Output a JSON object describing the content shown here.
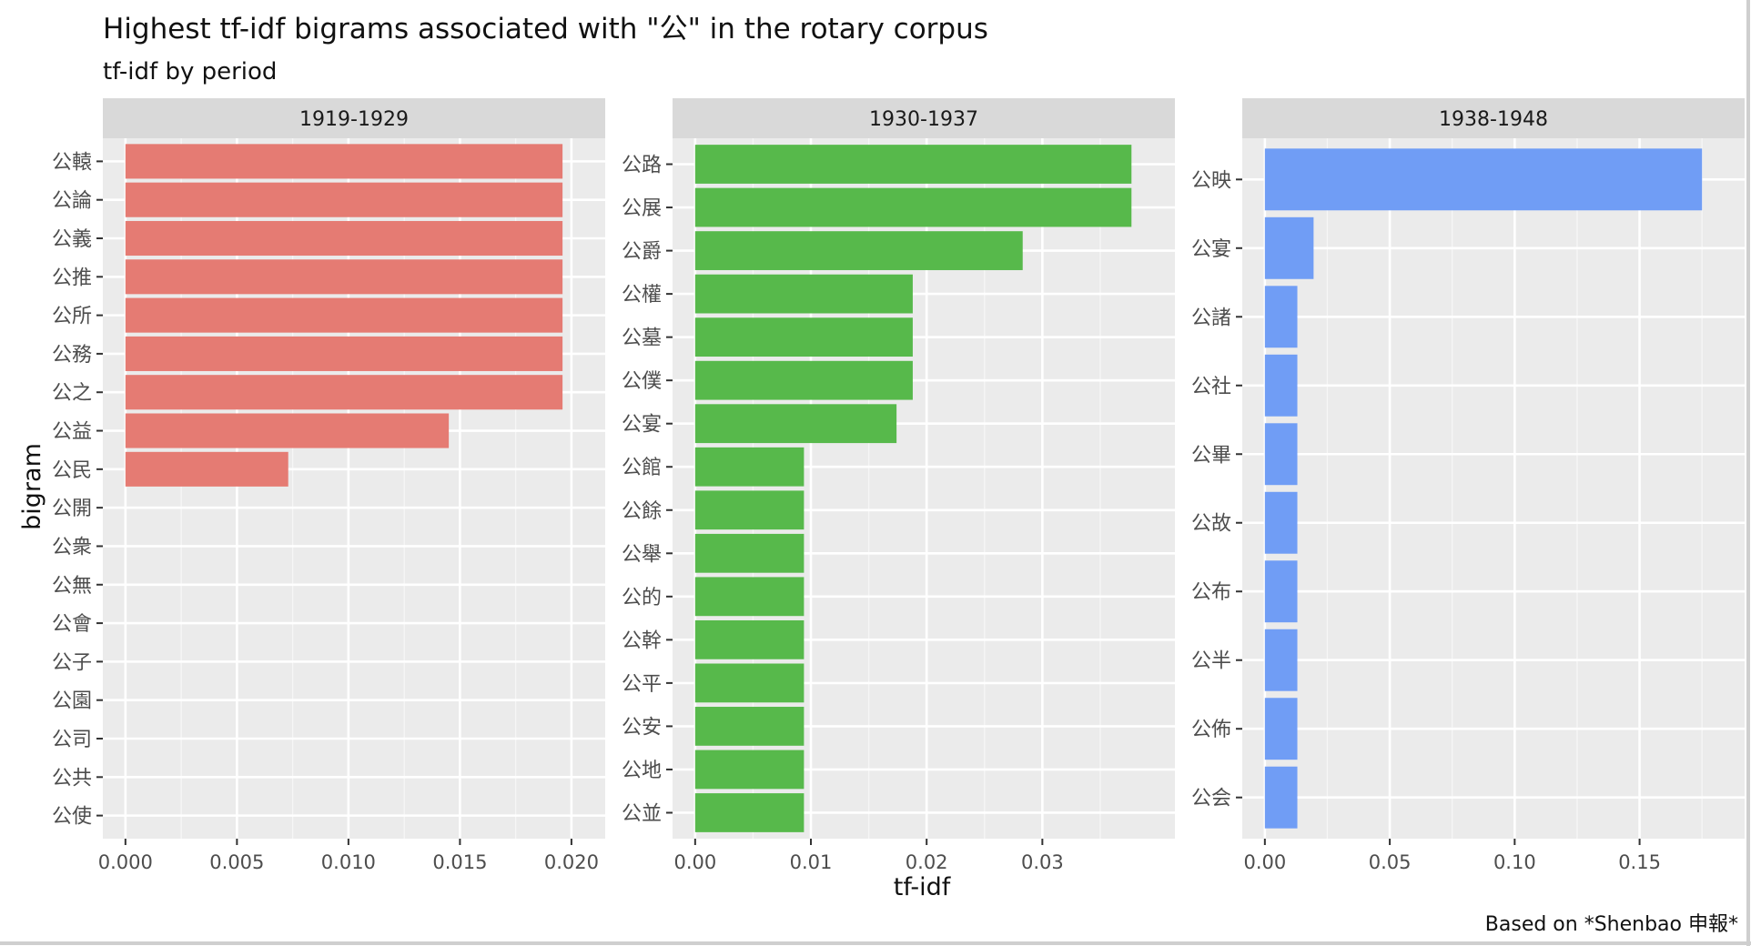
{
  "chart_data": {
    "type": "bar",
    "orientation": "horizontal",
    "title": "Highest tf-idf bigrams associated with \"公\" in the rotary corpus",
    "subtitle": "tf-idf by period",
    "xlabel": "tf-idf",
    "ylabel": "bigram",
    "caption": "Based on *Shenbao 申報*",
    "grid": true,
    "legend": "none",
    "facets": [
      {
        "label": "1919-1929",
        "color": "#e57b73",
        "xlim": [
          0,
          0.0205
        ],
        "xticks": [
          0.0,
          0.005,
          0.01,
          0.015,
          0.02
        ],
        "xtick_labels": [
          "0.000",
          "0.005",
          "0.010",
          "0.015",
          "0.020"
        ],
        "categories": [
          "公轅",
          "公論",
          "公義",
          "公推",
          "公所",
          "公務",
          "公之",
          "公益",
          "公民",
          "公開",
          "公衆",
          "公無",
          "公會",
          "公子",
          "公園",
          "公司",
          "公共",
          "公使"
        ],
        "values": [
          0.0196,
          0.0196,
          0.0196,
          0.0196,
          0.0196,
          0.0196,
          0.0196,
          0.0145,
          0.0073,
          0,
          0,
          0,
          0,
          0,
          0,
          0,
          0,
          0
        ]
      },
      {
        "label": "1930-1937",
        "color": "#57b94b",
        "xlim": [
          0,
          0.0395
        ],
        "xticks": [
          0.0,
          0.01,
          0.02,
          0.03
        ],
        "xtick_labels": [
          "0.00",
          "0.01",
          "0.02",
          "0.03"
        ],
        "categories": [
          "公路",
          "公展",
          "公爵",
          "公權",
          "公墓",
          "公僕",
          "公宴",
          "公館",
          "公餘",
          "公舉",
          "公的",
          "公幹",
          "公平",
          "公安",
          "公地",
          "公並"
        ],
        "values": [
          0.0377,
          0.0377,
          0.0283,
          0.0188,
          0.0188,
          0.0188,
          0.0174,
          0.0094,
          0.0094,
          0.0094,
          0.0094,
          0.0094,
          0.0094,
          0.0094,
          0.0094,
          0.0094
        ]
      },
      {
        "label": "1938-1948",
        "color": "#709df5",
        "xlim": [
          0,
          0.183
        ],
        "xticks": [
          0.0,
          0.05,
          0.1,
          0.15
        ],
        "xtick_labels": [
          "0.00",
          "0.05",
          "0.10",
          "0.15"
        ],
        "categories": [
          "公映",
          "公宴",
          "公諸",
          "公社",
          "公畢",
          "公故",
          "公布",
          "公半",
          "公佈",
          "公会"
        ],
        "values": [
          0.175,
          0.0195,
          0.013,
          0.013,
          0.013,
          0.013,
          0.013,
          0.013,
          0.013,
          0.013
        ]
      }
    ]
  }
}
